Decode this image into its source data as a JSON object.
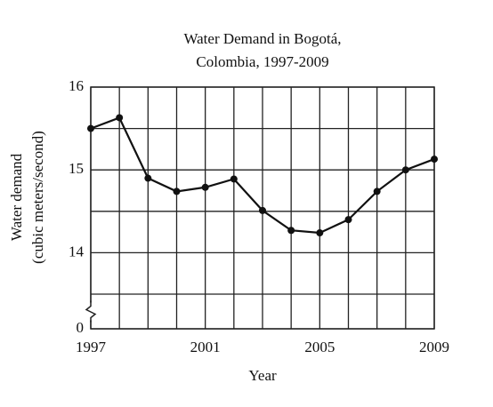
{
  "chart_data": {
    "type": "line",
    "title": [
      "Water Demand in Bogotá,",
      "Colombia, 1997-2009"
    ],
    "x_label": "Year",
    "y_label": [
      "Water demand",
      "(cubic meters/second)"
    ],
    "x": [
      1997,
      1998,
      1999,
      2000,
      2001,
      2002,
      2003,
      2004,
      2005,
      2006,
      2007,
      2008,
      2009
    ],
    "series": [
      {
        "color": "#111111",
        "values": [
          15.5,
          15.63,
          14.9,
          14.74,
          14.79,
          14.89,
          14.51,
          14.27,
          14.24,
          14.4,
          14.74,
          15.0,
          15.13
        ]
      }
    ],
    "xlim": [
      1997,
      2009
    ],
    "xticks": [
      1997,
      2001,
      2005,
      2009
    ],
    "ylim": [
      0,
      16
    ],
    "yticks": [
      0,
      14,
      15,
      16
    ],
    "minor_yticks": [
      13.5,
      14.5,
      15.5
    ],
    "axis_break": [
      0,
      13.5
    ],
    "grid": true
  }
}
